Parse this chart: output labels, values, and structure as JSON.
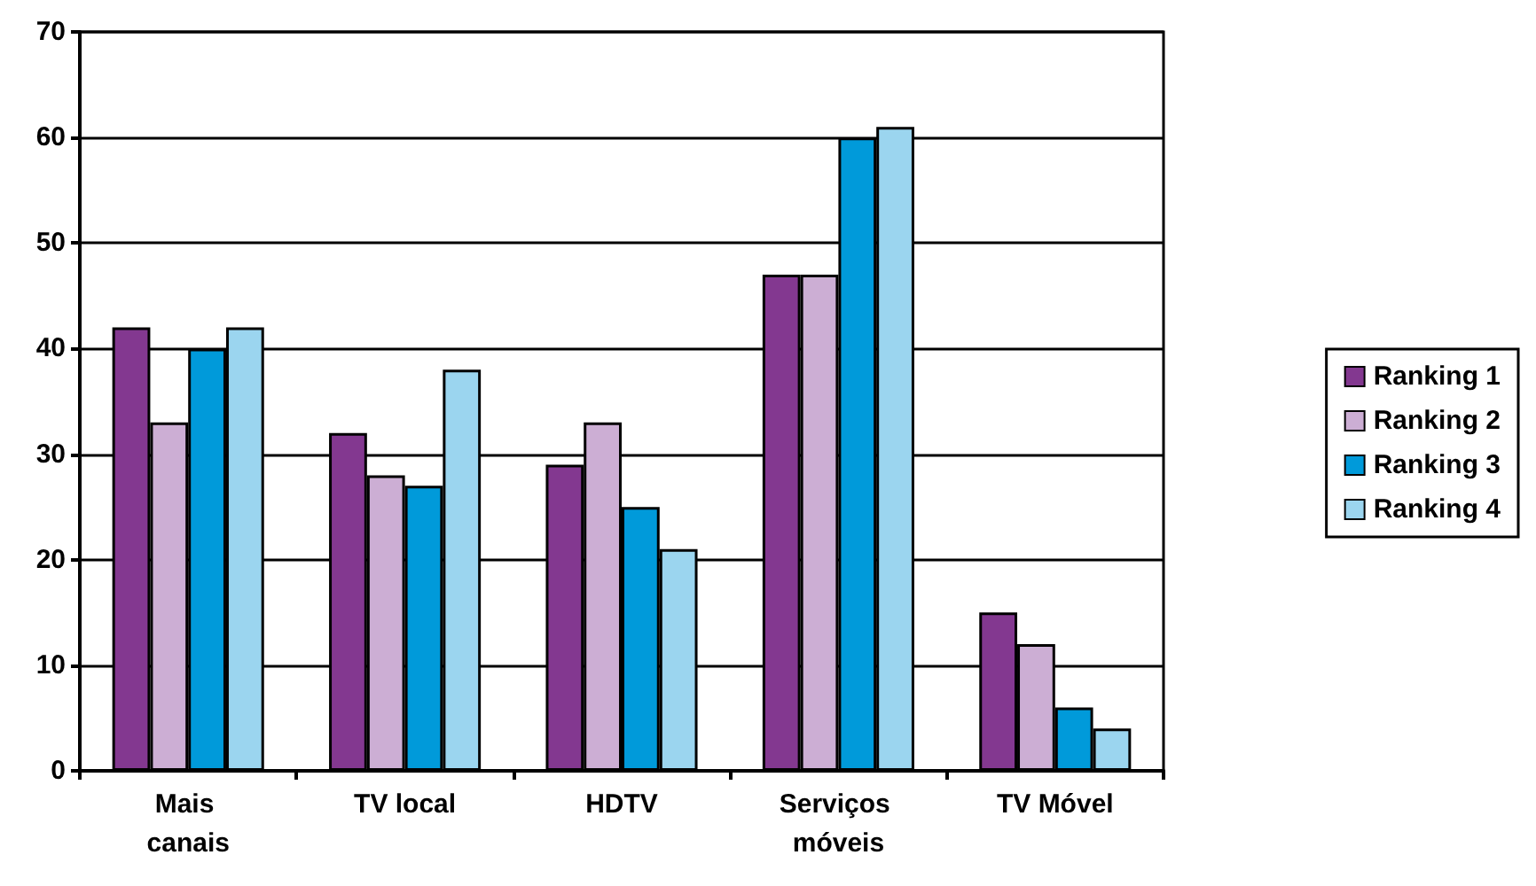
{
  "chart_data": {
    "type": "bar",
    "categories": [
      "Mais canais",
      "TV local",
      "HDTV",
      "Serviços móveis",
      "TV Móvel"
    ],
    "series": [
      {
        "name": "Ranking 1",
        "color": "#833890",
        "values": [
          42,
          32,
          29,
          47,
          15
        ]
      },
      {
        "name": "Ranking 2",
        "color": "#ccaed4",
        "values": [
          33,
          28,
          33,
          47,
          12
        ]
      },
      {
        "name": "Ranking 3",
        "color": "#009ada",
        "values": [
          40,
          27,
          25,
          60,
          6
        ]
      },
      {
        "name": "Ranking 4",
        "color": "#9bd5ef",
        "values": [
          42,
          38,
          21,
          61,
          4
        ]
      }
    ],
    "ylim": [
      0,
      70
    ],
    "yticks": [
      0,
      10,
      20,
      30,
      40,
      50,
      60,
      70
    ],
    "grid": "y",
    "legend": "right"
  }
}
